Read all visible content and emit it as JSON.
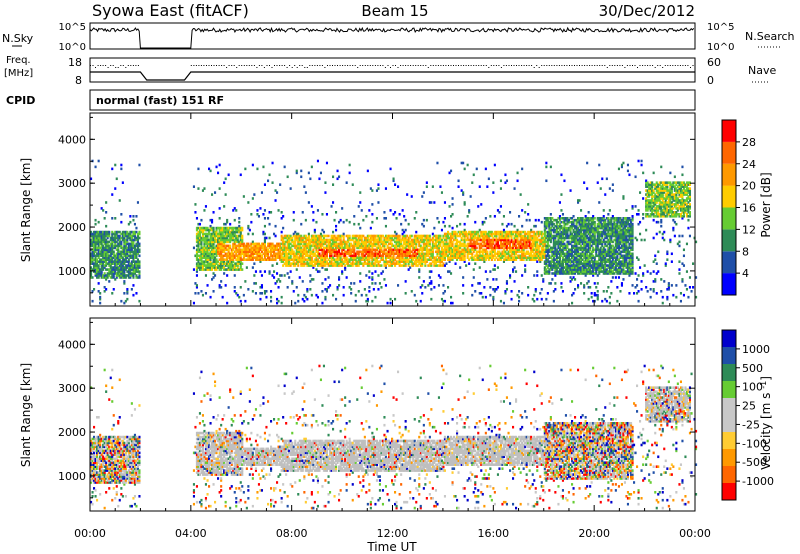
{
  "header": {
    "station": "Syowa East (fitACF)",
    "beam": "Beam 15",
    "date": "30/Dec/2012"
  },
  "top_panels": {
    "nsky_label": "N.Sky",
    "nsky_ticks": [
      "10^5",
      "10^0"
    ],
    "nsearch_label": "N.Search",
    "nsearch_ticks": [
      "10^5",
      "10^0"
    ],
    "freq_label_1": "Freq.",
    "freq_label_2": "[MHz]",
    "freq_ticks": [
      "18",
      "8"
    ],
    "nave_label": "Nave",
    "nave_ticks": [
      "60",
      "0"
    ],
    "cpid_label": "CPID",
    "cpid_text": "normal (fast) 151 RF"
  },
  "colors": {
    "power": [
      "#0000ff",
      "#1f4fa8",
      "#2e8b57",
      "#66cc33",
      "#ffcc00",
      "#ff9900",
      "#ff6600",
      "#ff0000"
    ],
    "velocity": [
      "#ff0000",
      "#ff6600",
      "#ff9900",
      "#ffcc33",
      "#c8c8c8",
      "#c8c8c8",
      "#66cc33",
      "#2e8b57",
      "#1f4fa8",
      "#0000cc"
    ],
    "ground_scatter": "#bfbfbf"
  },
  "chart_data": [
    {
      "type": "heatmap",
      "name": "power",
      "ylabel": "Slant Range [km]",
      "yticks": [
        "1000",
        "2000",
        "3000",
        "4000"
      ],
      "ylim": [
        200,
        4600
      ],
      "xlim": [
        0,
        24
      ],
      "xticks": [
        "00:00",
        "04:00",
        "08:00",
        "12:00",
        "16:00",
        "20:00",
        "00:00"
      ],
      "colorbar": {
        "label": "Power [dB]",
        "ticks": [
          "4",
          "8",
          "12",
          "16",
          "20",
          "24",
          "28"
        ],
        "range": [
          0,
          30
        ]
      },
      "data_gap": [
        2.0,
        4.0
      ],
      "bands": [
        {
          "t0": 0.0,
          "t1": 2.0,
          "r0": 800,
          "r1": 1900,
          "level": 2
        },
        {
          "t0": 4.2,
          "t1": 6.0,
          "r0": 1000,
          "r1": 2000,
          "level": 3
        },
        {
          "t0": 5.0,
          "t1": 7.5,
          "r0": 1200,
          "r1": 1600,
          "level": 5
        },
        {
          "t0": 7.5,
          "t1": 14.0,
          "r0": 1100,
          "r1": 1800,
          "level": 4
        },
        {
          "t0": 9.0,
          "t1": 13.0,
          "r0": 1300,
          "r1": 1500,
          "level": 6
        },
        {
          "t0": 14.0,
          "t1": 18.0,
          "r0": 1200,
          "r1": 1900,
          "level": 4
        },
        {
          "t0": 15.0,
          "t1": 17.5,
          "r0": 1500,
          "r1": 1700,
          "level": 6
        },
        {
          "t0": 18.0,
          "t1": 21.5,
          "r0": 900,
          "r1": 2200,
          "level": 2
        },
        {
          "t0": 22.0,
          "t1": 23.8,
          "r0": 2200,
          "r1": 3000,
          "level": 3
        }
      ]
    },
    {
      "type": "heatmap",
      "name": "velocity",
      "ylabel": "Slant Range [km]",
      "yticks": [
        "1000",
        "2000",
        "3000",
        "4000"
      ],
      "ylim": [
        200,
        4600
      ],
      "xlim": [
        0,
        24
      ],
      "xticks": [
        "00:00",
        "04:00",
        "08:00",
        "12:00",
        "16:00",
        "20:00",
        "00:00"
      ],
      "xlabel": "Time UT",
      "colorbar": {
        "label": "Velocity [m s^-1]",
        "ticks": [
          "1000",
          "500",
          "100",
          "25",
          "-25",
          "-100",
          "-500",
          "-1000"
        ],
        "range": [
          -1000,
          1000
        ]
      },
      "data_gap": [
        2.0,
        4.0
      ]
    }
  ]
}
